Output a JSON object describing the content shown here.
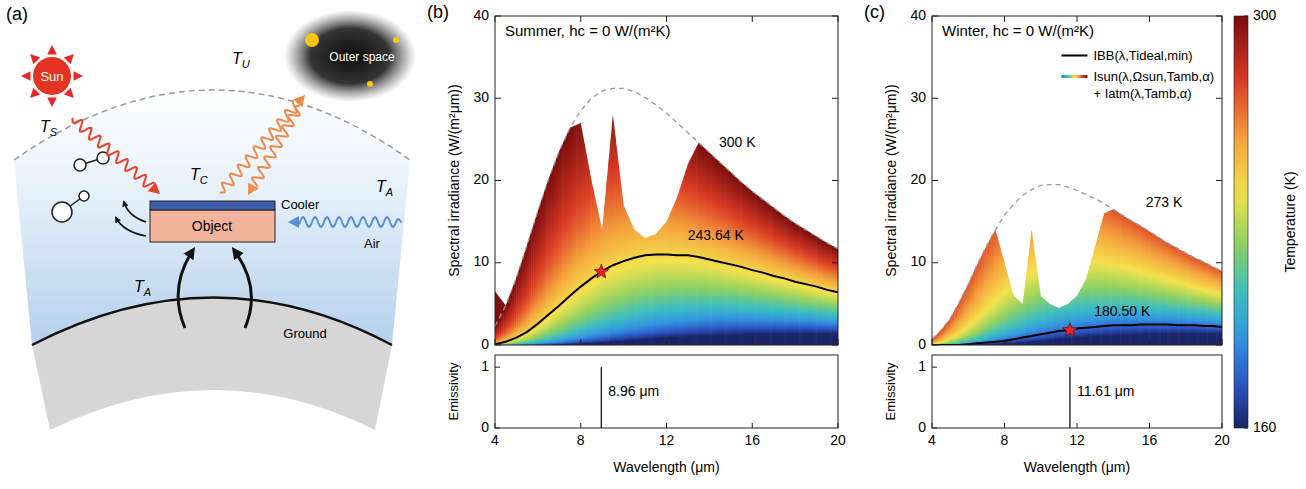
{
  "diagram": {
    "panel_label": "(a)",
    "labels": [
      "Sun",
      "Outer space",
      "Cooler",
      "Object",
      "Air",
      "Ground"
    ],
    "temperatures": [
      {
        "symbol": "T",
        "sub": "S"
      },
      {
        "symbol": "T",
        "sub": "U"
      },
      {
        "symbol": "T",
        "sub": "C"
      },
      {
        "symbol": "T",
        "sub": "A"
      },
      {
        "symbol": "T",
        "sub": "A"
      }
    ]
  },
  "colorbar": {
    "label": "Temperature (K)",
    "range": [
      160,
      300
    ],
    "ticks": [
      160,
      300
    ]
  },
  "chart_data": [
    {
      "type": "line",
      "panel_label": "(b)",
      "title": "Summer, hc = 0 W/(m²K)",
      "xlabel": "Wavelength (μm)",
      "ylabel": "Spectral irradiance (W/(m²μm))",
      "x": [
        4,
        4.5,
        5,
        5.5,
        6,
        6.5,
        7,
        7.5,
        8,
        8.5,
        9,
        9.5,
        10,
        10.5,
        11,
        11.5,
        12,
        12.5,
        13,
        13.5,
        14,
        14.5,
        15,
        15.5,
        16,
        16.5,
        17,
        17.5,
        18,
        18.5,
        19,
        19.5,
        20
      ],
      "xlim": [
        4,
        20
      ],
      "xticks": [
        4,
        8,
        12,
        16,
        20
      ],
      "ylim": [
        0,
        40
      ],
      "yticks": [
        0,
        10,
        20,
        30,
        40
      ],
      "series": [
        {
          "type": "line",
          "color": "#000000",
          "line_style": "solid",
          "values": [
            0.1,
            0.4,
            0.9,
            1.6,
            2.6,
            3.7,
            4.8,
            6.0,
            7.1,
            8.1,
            9.0,
            9.7,
            10.2,
            10.6,
            10.9,
            11.0,
            11.0,
            10.9,
            10.9,
            10.7,
            10.4,
            10.1,
            9.8,
            9.5,
            9.1,
            8.8,
            8.4,
            8.1,
            7.7,
            7.4,
            7.1,
            6.7,
            6.4
          ]
        },
        {
          "type": "area",
          "values": [
            6.5,
            4.8,
            8.2,
            12.2,
            16.3,
            20.2,
            23.6,
            26.4,
            27.0,
            20.0,
            14.0,
            28.0,
            17.0,
            14.0,
            13.0,
            13.5,
            15.0,
            18.0,
            22.0,
            24.6,
            23.4,
            22.2,
            21.0,
            19.8,
            18.7,
            17.7,
            16.7,
            15.7,
            14.8,
            14.0,
            13.2,
            12.4,
            11.7
          ]
        },
        {
          "type": "line",
          "color": "#9a9a9a",
          "line_style": "dashed",
          "values": [
            2.3,
            4.8,
            8.2,
            12.2,
            16.3,
            20.2,
            23.6,
            26.4,
            28.5,
            30.0,
            30.9,
            31.2,
            31.2,
            30.8,
            30.1,
            29.2,
            28.2,
            27.0,
            25.8,
            24.6,
            23.4,
            22.2,
            21.0,
            19.8,
            18.7,
            17.7,
            16.7,
            15.7,
            14.8,
            14.0,
            13.2,
            12.4,
            11.7
          ]
        }
      ],
      "annotations": [
        {
          "text": "300 K",
          "x": 15.3,
          "y": 24.5
        },
        {
          "text": "243.64 K",
          "x": 14.3,
          "y": 13.2
        }
      ],
      "star": {
        "x": 8.96,
        "y": 8.9,
        "color": "#e8262a"
      },
      "emissivity": {
        "ylabel": "Emissivity",
        "ylim": [
          0,
          1.2
        ],
        "yticks": [
          0,
          1
        ],
        "x": [
          8.96
        ],
        "values": [
          1
        ],
        "labels": [
          "8.96 μm"
        ]
      }
    },
    {
      "type": "line",
      "panel_label": "(c)",
      "title": "Winter, hc = 0 W/(m²K)",
      "xlabel": "Wavelength (μm)",
      "ylabel": "Spectral irradiance (W/(m²μm))",
      "x": [
        4,
        4.5,
        5,
        5.5,
        6,
        6.5,
        7,
        7.5,
        8,
        8.5,
        9,
        9.5,
        10,
        10.5,
        11,
        11.5,
        12,
        12.5,
        13,
        13.5,
        14,
        14.5,
        15,
        15.5,
        16,
        16.5,
        17,
        17.5,
        18,
        18.5,
        19,
        19.5,
        20
      ],
      "xlim": [
        4,
        20
      ],
      "xticks": [
        4,
        8,
        12,
        16,
        20
      ],
      "ylim": [
        0,
        40
      ],
      "yticks": [
        0,
        10,
        20,
        30,
        40
      ],
      "legend": "upper right",
      "series": [
        {
          "name": "IBB(λ,Tideal,min)",
          "type": "line",
          "color": "#000000",
          "line_style": "solid",
          "values": [
            0.0,
            0.0,
            0.0,
            0.0,
            0.1,
            0.2,
            0.3,
            0.4,
            0.5,
            0.7,
            0.9,
            1.1,
            1.3,
            1.5,
            1.7,
            1.8,
            2.0,
            2.1,
            2.2,
            2.3,
            2.4,
            2.4,
            2.4,
            2.5,
            2.5,
            2.5,
            2.5,
            2.4,
            2.4,
            2.4,
            2.3,
            2.3,
            2.2
          ]
        },
        {
          "name": "Isun(λ,Ωsun,Tamb,α) + Iatm(λ,Tamb,α)",
          "type": "area",
          "values": [
            0.7,
            1.8,
            3.2,
            5.2,
            7.4,
            9.8,
            12.0,
            14.0,
            10.0,
            6.0,
            5.0,
            14.0,
            6.0,
            5.0,
            4.5,
            5.0,
            6.0,
            8.0,
            12.0,
            16.0,
            16.5,
            15.8,
            15.1,
            14.5,
            13.8,
            13.1,
            12.4,
            11.8,
            11.2,
            10.6,
            10.1,
            9.5,
            9.0
          ]
        },
        {
          "type": "line",
          "color": "#9a9a9a",
          "line_style": "dashed",
          "values": [
            0.7,
            1.8,
            3.2,
            5.2,
            7.4,
            9.8,
            12.0,
            14.0,
            15.8,
            17.1,
            18.2,
            18.9,
            19.4,
            19.5,
            19.5,
            19.2,
            18.8,
            18.3,
            17.8,
            17.2,
            16.5,
            15.8,
            15.1,
            14.5,
            13.8,
            13.1,
            12.4,
            11.8,
            11.2,
            10.6,
            10.1,
            9.5,
            9.0
          ]
        }
      ],
      "annotations": [
        {
          "text": "273 K",
          "x": 16.8,
          "y": 17.2
        },
        {
          "text": "180.50 K",
          "x": 14.5,
          "y": 4.0
        }
      ],
      "star": {
        "x": 11.61,
        "y": 1.8,
        "color": "#e8262a"
      },
      "emissivity": {
        "ylabel": "Emissivity",
        "ylim": [
          0,
          1.2
        ],
        "yticks": [
          0,
          1
        ],
        "x": [
          11.61
        ],
        "values": [
          1
        ],
        "labels": [
          "11.61 μm"
        ]
      }
    }
  ]
}
